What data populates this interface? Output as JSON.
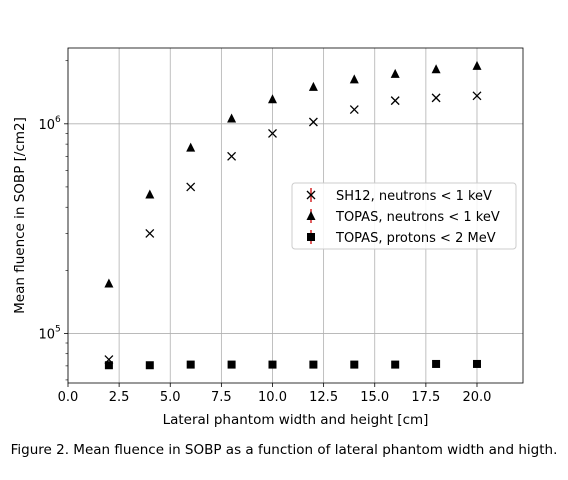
{
  "figure": {
    "caption": "Figure 2. Mean fluence in SOBP as a function of lateral phantom width and higth."
  },
  "chart_data": {
    "type": "scatter",
    "xlabel": "Lateral phantom width and height [cm]",
    "ylabel": "Mean fluence in SOBP [/cm2]",
    "xlim": [
      0.0,
      22.25
    ],
    "ylim": [
      58000,
      2300000
    ],
    "yscale": "log",
    "xticks": [
      0.0,
      2.5,
      5.0,
      7.5,
      10.0,
      12.5,
      15.0,
      17.5,
      20.0
    ],
    "xtick_labels": [
      "0.0",
      "2.5",
      "5.0",
      "7.5",
      "10.0",
      "12.5",
      "15.0",
      "17.5",
      "20.0"
    ],
    "yticks_major": [
      100000,
      1000000
    ],
    "ytick_labels": [
      {
        "base": "10",
        "exp": "5"
      },
      {
        "base": "10",
        "exp": "6"
      }
    ],
    "grid": true,
    "legend_position": "center-right",
    "series": [
      {
        "name": "SH12, neutrons < 1 keV",
        "marker": "x",
        "color": "#000000",
        "errorbar_color": "#d62728",
        "x": [
          2,
          4,
          6,
          8,
          10,
          12,
          14,
          16,
          18,
          20
        ],
        "y": [
          75000,
          300000,
          500000,
          700000,
          900000,
          1020000,
          1170000,
          1290000,
          1330000,
          1360000
        ]
      },
      {
        "name": "TOPAS, neutrons < 1 keV",
        "marker": "triangle",
        "color": "#000000",
        "errorbar_color": "#d62728",
        "x": [
          2,
          4,
          6,
          8,
          10,
          12,
          14,
          16,
          18,
          20
        ],
        "y": [
          173000,
          460000,
          770000,
          1060000,
          1310000,
          1500000,
          1630000,
          1730000,
          1820000,
          1890000
        ]
      },
      {
        "name": "TOPAS, protons < 2 MeV",
        "marker": "square",
        "color": "#000000",
        "errorbar_color": "#d62728",
        "x": [
          2,
          4,
          6,
          8,
          10,
          12,
          14,
          16,
          18,
          20
        ],
        "y": [
          70500,
          70500,
          71000,
          71000,
          71000,
          71000,
          71000,
          71000,
          71500,
          71500
        ]
      }
    ]
  }
}
